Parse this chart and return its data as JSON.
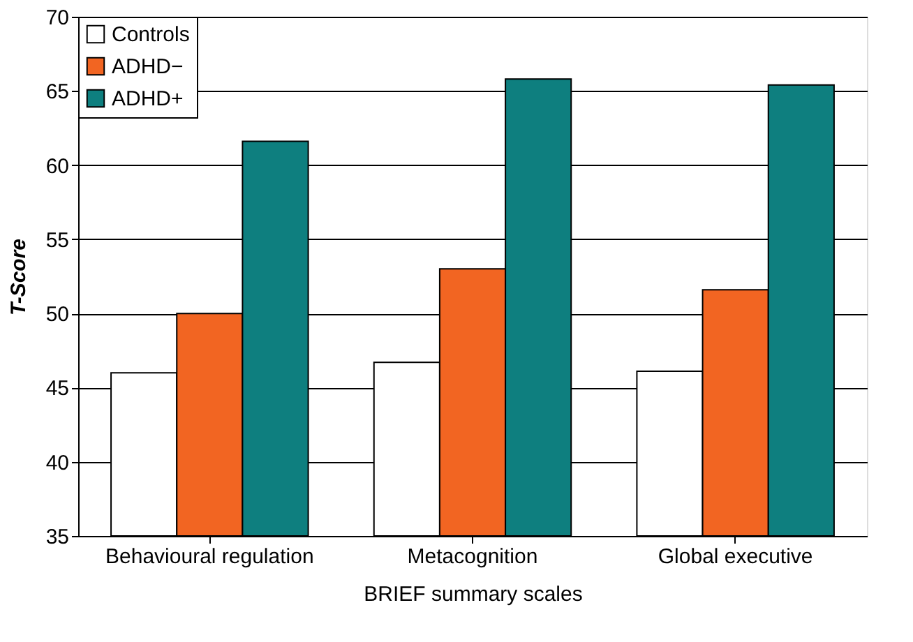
{
  "chart_data": {
    "type": "bar",
    "xlabel": "BRIEF summary scales",
    "ylabel": "T-Score",
    "categories": [
      "Behavioural regulation",
      "Metacognition",
      "Global executive"
    ],
    "series": [
      {
        "name": "Controls",
        "color": "#ffffff",
        "values": [
          46,
          46.7,
          46.1
        ]
      },
      {
        "name": "ADHD−",
        "color": "#f26522",
        "values": [
          50,
          53,
          51.6
        ]
      },
      {
        "name": "ADHD+",
        "color": "#0e7f7f",
        "values": [
          61.6,
          65.8,
          65.4
        ]
      }
    ],
    "ylim": [
      35,
      70
    ],
    "yticks": [
      35,
      40,
      45,
      50,
      55,
      60,
      65,
      70
    ],
    "grid": "y",
    "legend": "top left"
  }
}
